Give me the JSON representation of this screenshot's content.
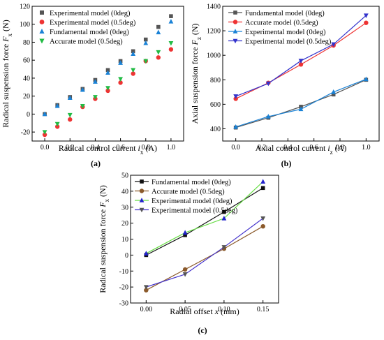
{
  "chart_data": [
    {
      "type": "scatter",
      "panel_label": "(a)",
      "xlabel": "Radical control current",
      "xlabel_var": "i",
      "xlabel_sub": "x",
      "xlabel_unit": "(A)",
      "ylabel": "Radical suspension force",
      "ylabel_var": "F",
      "ylabel_sub": "x",
      "ylabel_unit": "(N)",
      "xlim": [
        -0.1,
        1.1
      ],
      "ylim": [
        -30,
        120
      ],
      "xticks": [
        "0.0",
        "0.2",
        "0.4",
        "0.6",
        "0.8",
        "1.0"
      ],
      "yticks": [
        "-20",
        "0",
        "20",
        "40",
        "60",
        "80",
        "100",
        "120"
      ],
      "legend_position": "top-left",
      "x": [
        0,
        0.1,
        0.2,
        0.3,
        0.4,
        0.5,
        0.6,
        0.7,
        0.8,
        0.9,
        1.0
      ],
      "series": [
        {
          "name": "Experimental model (0deg)",
          "color": "#555555",
          "marker": "square",
          "values": [
            0,
            10,
            19,
            28,
            38,
            49,
            59,
            70,
            83,
            97,
            109
          ]
        },
        {
          "name": "Experimental model (0.5deg)",
          "color": "#ee3333",
          "marker": "circle",
          "values": [
            -23,
            -14,
            -6,
            8,
            17,
            26,
            35,
            45,
            59,
            63,
            72
          ]
        },
        {
          "name": "Fundamental model (0deg)",
          "color": "#1a82d6",
          "marker": "triangle-up",
          "values": [
            0,
            9,
            18,
            27,
            36,
            46,
            57,
            67,
            79,
            91,
            103
          ]
        },
        {
          "name": "Accurate model (0.5deg)",
          "color": "#22bb44",
          "marker": "triangle-down",
          "values": [
            -20,
            -11,
            -1,
            9,
            19,
            29,
            39,
            49,
            59,
            69,
            79
          ]
        }
      ]
    },
    {
      "type": "line",
      "panel_label": "(b)",
      "xlabel": "Axial control current",
      "xlabel_var": "i",
      "xlabel_sub": "z",
      "xlabel_unit": "(A)",
      "ylabel": "Axial suspension force",
      "ylabel_var": "F",
      "ylabel_sub": "z",
      "ylabel_unit": "(N)",
      "xlim": [
        -0.1,
        1.1
      ],
      "ylim": [
        300,
        1400
      ],
      "xticks": [
        "0.0",
        "0.2",
        "0.4",
        "0.6",
        "0.8",
        "1.0"
      ],
      "yticks": [
        "400",
        "600",
        "800",
        "1000",
        "1200",
        "1400"
      ],
      "legend_position": "top-left",
      "x": [
        0,
        0.25,
        0.5,
        0.75,
        1.0
      ],
      "series": [
        {
          "name": "Fundamental model (0deg)",
          "color": "#555555",
          "marker": "square",
          "values": [
            410,
            490,
            580,
            680,
            800
          ]
        },
        {
          "name": "Accurate model (0.5deg)",
          "color": "#ee3333",
          "marker": "circle",
          "values": [
            645,
            775,
            925,
            1080,
            1265
          ]
        },
        {
          "name": "Experimental model (0deg)",
          "color": "#1a82d6",
          "marker": "triangle-up",
          "values": [
            415,
            500,
            560,
            700,
            805
          ]
        },
        {
          "name": "Experimental model (0.5deg)",
          "color": "#3333cc",
          "marker": "triangle-down",
          "values": [
            665,
            770,
            955,
            1090,
            1325
          ]
        }
      ]
    },
    {
      "type": "line",
      "panel_label": "(c)",
      "xlabel": "Radial offset",
      "xlabel_var": "x",
      "xlabel_sub": "",
      "xlabel_unit": "(mm)",
      "ylabel": "Radical suspension force",
      "ylabel_var": "F",
      "ylabel_sub": "x",
      "ylabel_unit": "(N)",
      "xlim": [
        -0.02,
        0.17
      ],
      "ylim": [
        -30,
        50
      ],
      "xticks": [
        "0.00",
        "0.05",
        "0.10",
        "0.15"
      ],
      "yticks": [
        "-30",
        "-20",
        "-10",
        "0",
        "10",
        "20",
        "30",
        "40",
        "50"
      ],
      "legend_position": "top-left",
      "x": [
        0,
        0.05,
        0.1,
        0.15
      ],
      "series": [
        {
          "name": "Fundamental model (0deg)",
          "color": "#111111",
          "marker": "square",
          "values": [
            0,
            12.5,
            27,
            42
          ]
        },
        {
          "name": "Accurate model (0.5deg)",
          "color": "#8b5a2b",
          "marker": "circle",
          "values": [
            -22,
            -9,
            4,
            18
          ]
        },
        {
          "name": "Experimental model (0deg)",
          "color": "#2222cc",
          "marker": "triangle-up",
          "line_color": "#66dd44",
          "values": [
            1,
            14,
            23,
            46
          ]
        },
        {
          "name": "Experimental model (0.5deg)",
          "color": "#555555",
          "marker": "triangle-down",
          "line_color": "#4433cc",
          "values": [
            -20,
            -12,
            5,
            23
          ]
        }
      ]
    }
  ]
}
